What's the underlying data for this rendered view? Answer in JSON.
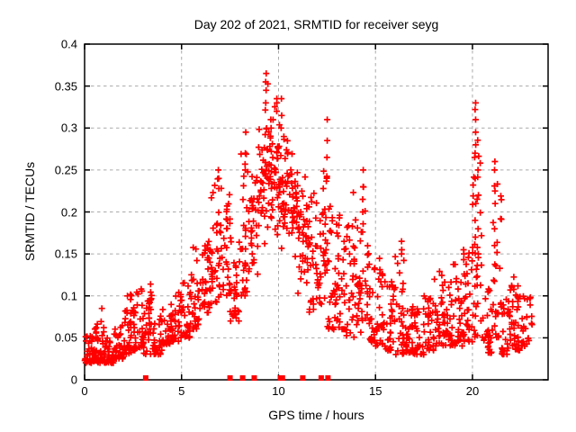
{
  "chart_data": {
    "type": "scatter",
    "title": "Day 202 of 2021, SRMTID for receiver seyg",
    "xlabel": "GPS time / hours",
    "ylabel": "SRMTID / TECUs",
    "xlim": [
      0,
      23.9
    ],
    "ylim": [
      0,
      0.4
    ],
    "xticks": [
      "0",
      "5",
      "10",
      "15",
      "20"
    ],
    "xtick_values": [
      0,
      5,
      10,
      15,
      20
    ],
    "yticks": [
      "0",
      "0.05",
      "0.1",
      "0.15",
      "0.2",
      "0.25",
      "0.3",
      "0.35",
      "0.4"
    ],
    "ytick_values": [
      0,
      0.05,
      0.1,
      0.15,
      0.2,
      0.25,
      0.3,
      0.35,
      0.4
    ],
    "grid": true,
    "legend": "none",
    "marker": {
      "shape": "plus",
      "color": "#ff0000",
      "size": 7
    },
    "flag_marker": {
      "shape": "square",
      "color": "#ff0000",
      "size": 6
    },
    "series_name": "SRMTID scatter (envelope bins: [t_start, t_end, count, y_min, y_max, centered])",
    "scatter_bins": [
      [
        0.0,
        0.5,
        38,
        0.02,
        0.055
      ],
      [
        0.5,
        1.0,
        38,
        0.02,
        0.07
      ],
      [
        1.0,
        1.5,
        34,
        0.02,
        0.05
      ],
      [
        1.5,
        2.0,
        34,
        0.025,
        0.065
      ],
      [
        2.0,
        2.5,
        34,
        0.03,
        0.105
      ],
      [
        2.5,
        3.0,
        34,
        0.035,
        0.115
      ],
      [
        3.0,
        3.5,
        36,
        0.03,
        0.12
      ],
      [
        3.5,
        4.0,
        30,
        0.03,
        0.08
      ],
      [
        4.0,
        4.5,
        26,
        0.04,
        0.09
      ],
      [
        4.5,
        5.0,
        30,
        0.045,
        0.105
      ],
      [
        5.0,
        5.5,
        30,
        0.05,
        0.12
      ],
      [
        5.5,
        6.0,
        30,
        0.06,
        0.16
      ],
      [
        6.0,
        6.5,
        34,
        0.08,
        0.175
      ],
      [
        6.5,
        7.0,
        34,
        0.09,
        0.25
      ],
      [
        7.0,
        7.5,
        32,
        0.1,
        0.245
      ],
      [
        7.5,
        8.0,
        30,
        0.07,
        0.175
      ],
      [
        8.0,
        8.5,
        32,
        0.1,
        0.27
      ],
      [
        8.5,
        9.0,
        32,
        0.12,
        0.3,
        1
      ],
      [
        9.0,
        9.5,
        40,
        0.15,
        0.36,
        1
      ],
      [
        9.5,
        10.0,
        42,
        0.16,
        0.335,
        1
      ],
      [
        10.0,
        10.5,
        42,
        0.14,
        0.33,
        1
      ],
      [
        10.5,
        11.0,
        36,
        0.13,
        0.28,
        1
      ],
      [
        11.0,
        11.5,
        36,
        0.1,
        0.25,
        1
      ],
      [
        11.5,
        12.0,
        32,
        0.08,
        0.23
      ],
      [
        12.0,
        12.5,
        34,
        0.09,
        0.27
      ],
      [
        12.5,
        13.0,
        32,
        0.06,
        0.21
      ],
      [
        13.0,
        13.5,
        30,
        0.06,
        0.2
      ],
      [
        13.5,
        14.0,
        30,
        0.05,
        0.23
      ],
      [
        14.0,
        14.5,
        30,
        0.05,
        0.25
      ],
      [
        14.5,
        15.0,
        30,
        0.045,
        0.16
      ],
      [
        15.0,
        15.5,
        30,
        0.04,
        0.145
      ],
      [
        15.5,
        16.0,
        30,
        0.035,
        0.12
      ],
      [
        16.0,
        16.5,
        30,
        0.03,
        0.15
      ],
      [
        16.5,
        17.0,
        30,
        0.03,
        0.09
      ],
      [
        17.0,
        17.5,
        30,
        0.03,
        0.085
      ],
      [
        17.5,
        18.0,
        30,
        0.035,
        0.1
      ],
      [
        18.0,
        18.5,
        30,
        0.04,
        0.13
      ],
      [
        18.5,
        19.0,
        30,
        0.04,
        0.12
      ],
      [
        19.0,
        19.5,
        30,
        0.04,
        0.14
      ],
      [
        19.5,
        20.0,
        32,
        0.045,
        0.155
      ],
      [
        20.0,
        20.5,
        36,
        0.05,
        0.3
      ],
      [
        20.5,
        21.0,
        26,
        0.03,
        0.12
      ],
      [
        21.0,
        21.5,
        32,
        0.05,
        0.235
      ],
      [
        21.5,
        22.0,
        30,
        0.03,
        0.11
      ],
      [
        22.0,
        22.5,
        36,
        0.035,
        0.125
      ],
      [
        22.5,
        23.1,
        28,
        0.04,
        0.1
      ]
    ],
    "high_columns": [
      {
        "x": 0.9,
        "ys": [
          0.085
        ]
      },
      {
        "x": 6.9,
        "ys": [
          0.24,
          0.25
        ]
      },
      {
        "x": 8.3,
        "ys": [
          0.25,
          0.27,
          0.295
        ]
      },
      {
        "x": 9.35,
        "ys": [
          0.33,
          0.345,
          0.355,
          0.365
        ]
      },
      {
        "x": 9.6,
        "ys": [
          0.3,
          0.31
        ]
      },
      {
        "x": 9.9,
        "ys": [
          0.32,
          0.33,
          0.335
        ]
      },
      {
        "x": 10.15,
        "ys": [
          0.3,
          0.315,
          0.335
        ]
      },
      {
        "x": 12.5,
        "ys": [
          0.24,
          0.265,
          0.285,
          0.31
        ]
      },
      {
        "x": 14.35,
        "ys": [
          0.2,
          0.215,
          0.23,
          0.25
        ]
      },
      {
        "x": 16.35,
        "ys": [
          0.15,
          0.155,
          0.165
        ]
      },
      {
        "x": 19.55,
        "ys": [
          0.15,
          0.155
        ]
      },
      {
        "x": 20.15,
        "ys": [
          0.17,
          0.19,
          0.21,
          0.24,
          0.27,
          0.28,
          0.295,
          0.31,
          0.322,
          0.33
        ]
      },
      {
        "x": 20.3,
        "ys": [
          0.15,
          0.18,
          0.22,
          0.25
        ]
      },
      {
        "x": 21.15,
        "ys": [
          0.16,
          0.18,
          0.21,
          0.225,
          0.25,
          0.26
        ]
      }
    ],
    "zero_flag_hours": [
      3.15,
      7.5,
      8.15,
      8.75,
      10.1,
      10.2,
      11.25,
      12.2,
      12.55
    ],
    "colors": {
      "points": "#ff0000",
      "grid": "#aaaaaa",
      "frame": "#000000",
      "text": "#000000"
    }
  }
}
